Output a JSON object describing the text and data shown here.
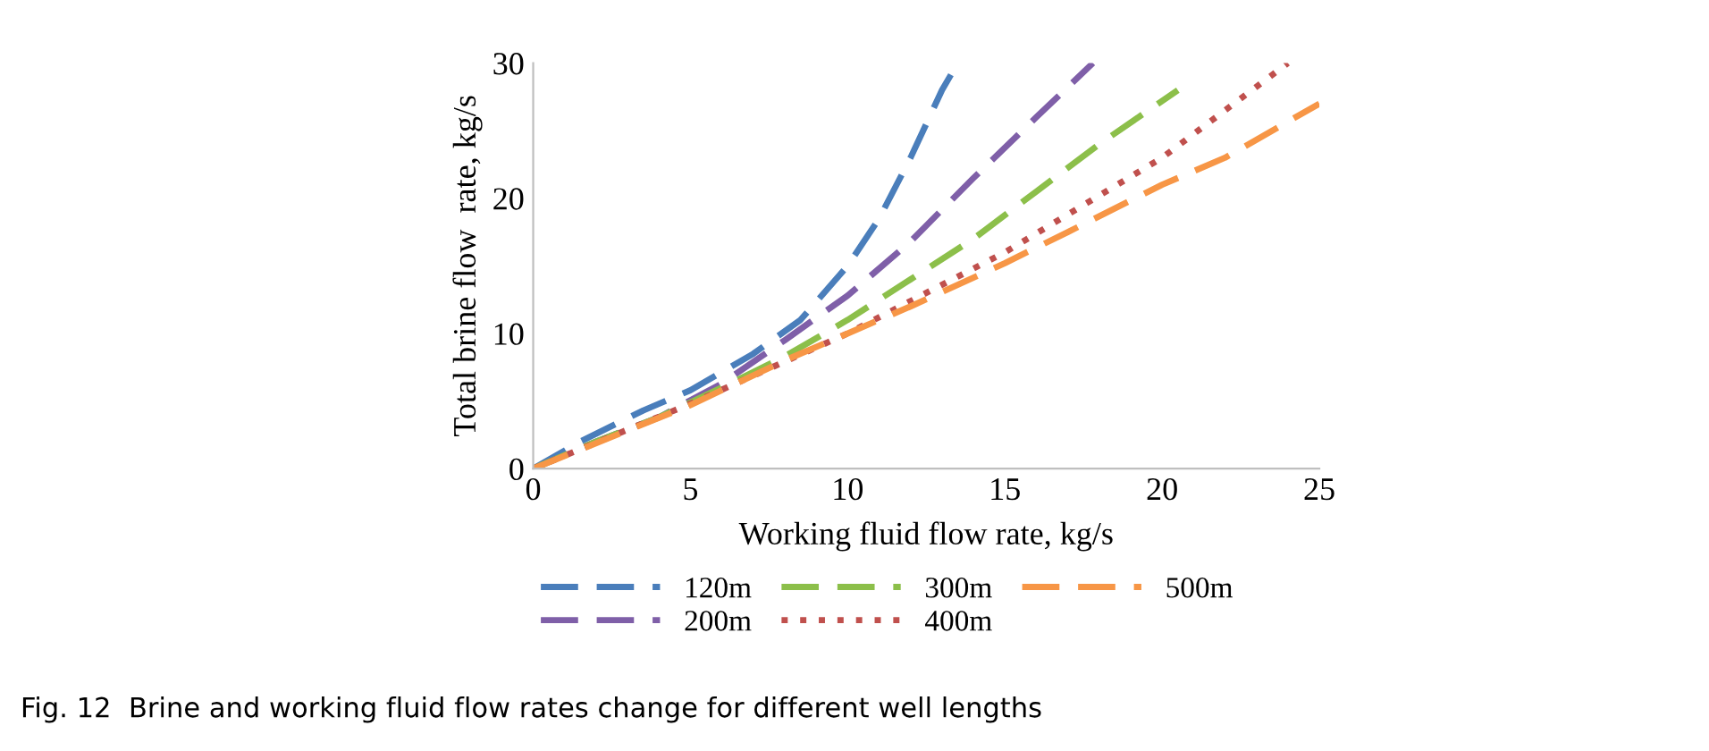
{
  "chart_data": {
    "type": "line",
    "xlabel": "Working fluid flow rate, kg/s",
    "ylabel": "Total brine flow  rate, kg/s",
    "xlim": [
      0,
      25
    ],
    "ylim": [
      0,
      30
    ],
    "xticks": [
      0,
      5,
      10,
      15,
      20,
      25
    ],
    "yticks": [
      0,
      10,
      20,
      30
    ],
    "grid": false,
    "legend": "bottom",
    "marker": "none",
    "annotations": [
      "Fig. 12  Brine and working fluid flow rates change for different well lengths"
    ],
    "series": [
      {
        "name": "120m",
        "color": "#4a7ebb",
        "line_style": "dashed",
        "x": [
          0,
          1.5,
          3.5,
          5,
          7,
          8.5,
          10,
          11,
          12,
          13,
          13.5
        ],
        "values": [
          0,
          2,
          4.3,
          5.8,
          8.5,
          11,
          15,
          18.5,
          23,
          28,
          30
        ]
      },
      {
        "name": "200m",
        "color": "#7f5fa8",
        "line_style": "dashed",
        "x": [
          0,
          2,
          4,
          6,
          8,
          10,
          12,
          14,
          16,
          17.8
        ],
        "values": [
          0,
          2,
          3.8,
          6.3,
          9.5,
          12.8,
          16.8,
          21.5,
          26,
          30
        ]
      },
      {
        "name": "300m",
        "color": "#8cbf4a",
        "line_style": "dashed",
        "x": [
          0,
          2,
          4,
          6,
          8,
          10,
          12,
          14,
          16,
          18,
          20.5
        ],
        "values": [
          0,
          2,
          3.8,
          6,
          8.3,
          11,
          14,
          17,
          20.5,
          24,
          28
        ]
      },
      {
        "name": "400m",
        "color": "#c0504d",
        "line_style": "dotted",
        "x": [
          0,
          5,
          10,
          15,
          20,
          24
        ],
        "values": [
          0,
          4.8,
          10,
          16,
          23,
          30
        ]
      },
      {
        "name": "500m",
        "color": "#f79646",
        "line_style": "dashed",
        "x": [
          0,
          5,
          8,
          10,
          12,
          15,
          17,
          20,
          22,
          25
        ],
        "values": [
          0,
          4.7,
          8,
          10,
          12,
          15.2,
          17.5,
          21,
          23,
          27
        ]
      }
    ]
  }
}
